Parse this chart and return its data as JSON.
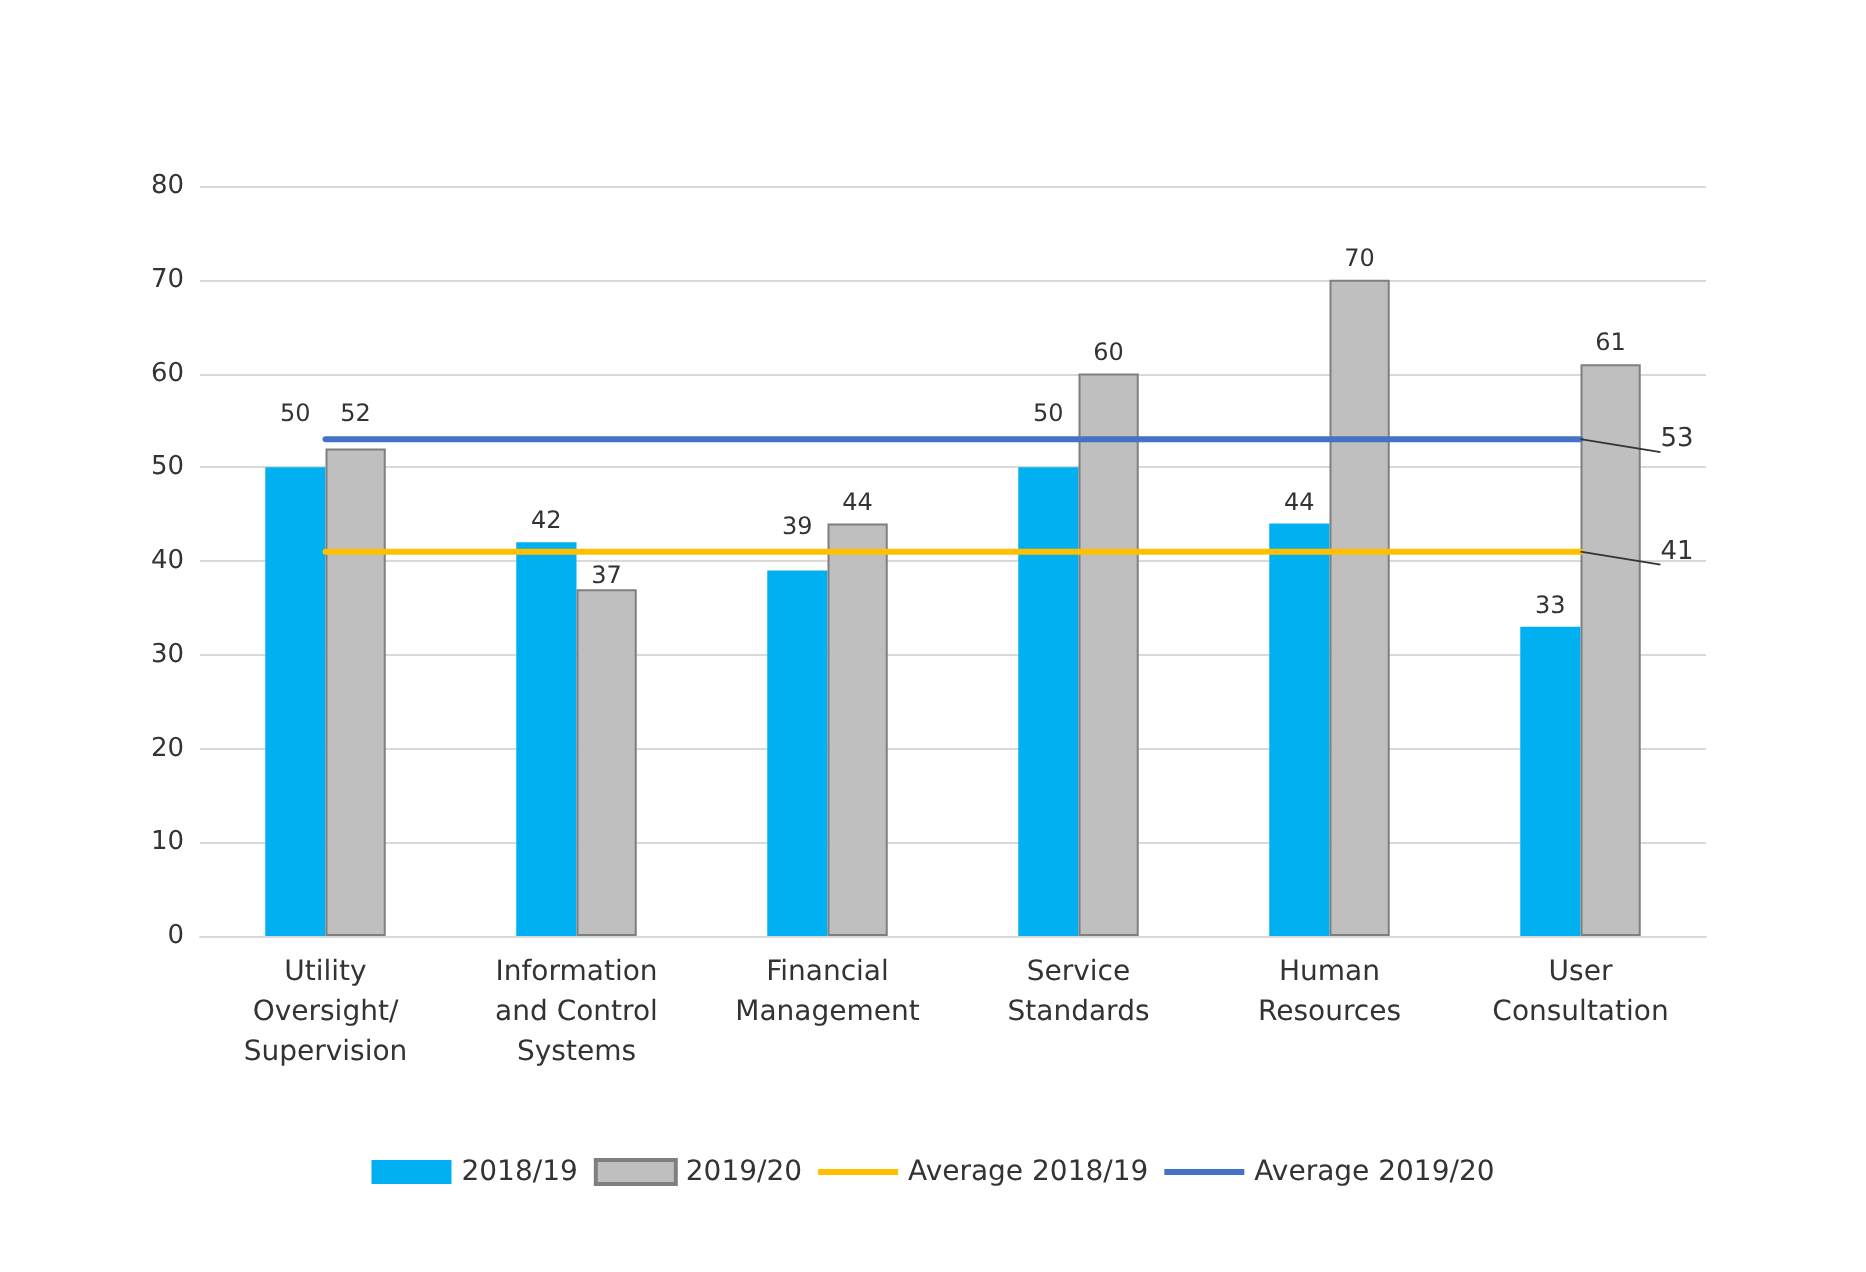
{
  "chart_data": {
    "type": "bar",
    "categories": [
      "Utility\nOversight/\nSupervision",
      "Information\nand Control\nSystems",
      "Financial\nManagement",
      "Service\nStandards",
      "Human\nResources",
      "User\nConsultation"
    ],
    "series": [
      {
        "name": "2018/19",
        "color": "#00b0f0",
        "values": [
          50,
          42,
          39,
          50,
          44,
          33
        ]
      },
      {
        "name": "2019/20",
        "color": "#bfbfbf",
        "values": [
          52,
          37,
          44,
          60,
          70,
          61
        ]
      },
      {
        "name": "Average 2018/19",
        "type": "line",
        "color": "#ffc000",
        "values": [
          41,
          41,
          41,
          41,
          41,
          41
        ],
        "value_labels": [
          null,
          null,
          null,
          null,
          null,
          "41"
        ]
      },
      {
        "name": "Average 2019/20",
        "type": "line",
        "color": "#4472c4",
        "values": [
          53,
          53,
          53,
          53,
          53,
          53
        ],
        "value_labels": [
          null,
          null,
          null,
          null,
          null,
          "53"
        ]
      }
    ],
    "ylim": [
      0,
      80
    ],
    "yticks": [
      0,
      10,
      20,
      30,
      40,
      50,
      60,
      70,
      80
    ],
    "grid": "y",
    "legend": "bottom",
    "data_labels": true,
    "marker": "none",
    "line_style": "solid"
  }
}
